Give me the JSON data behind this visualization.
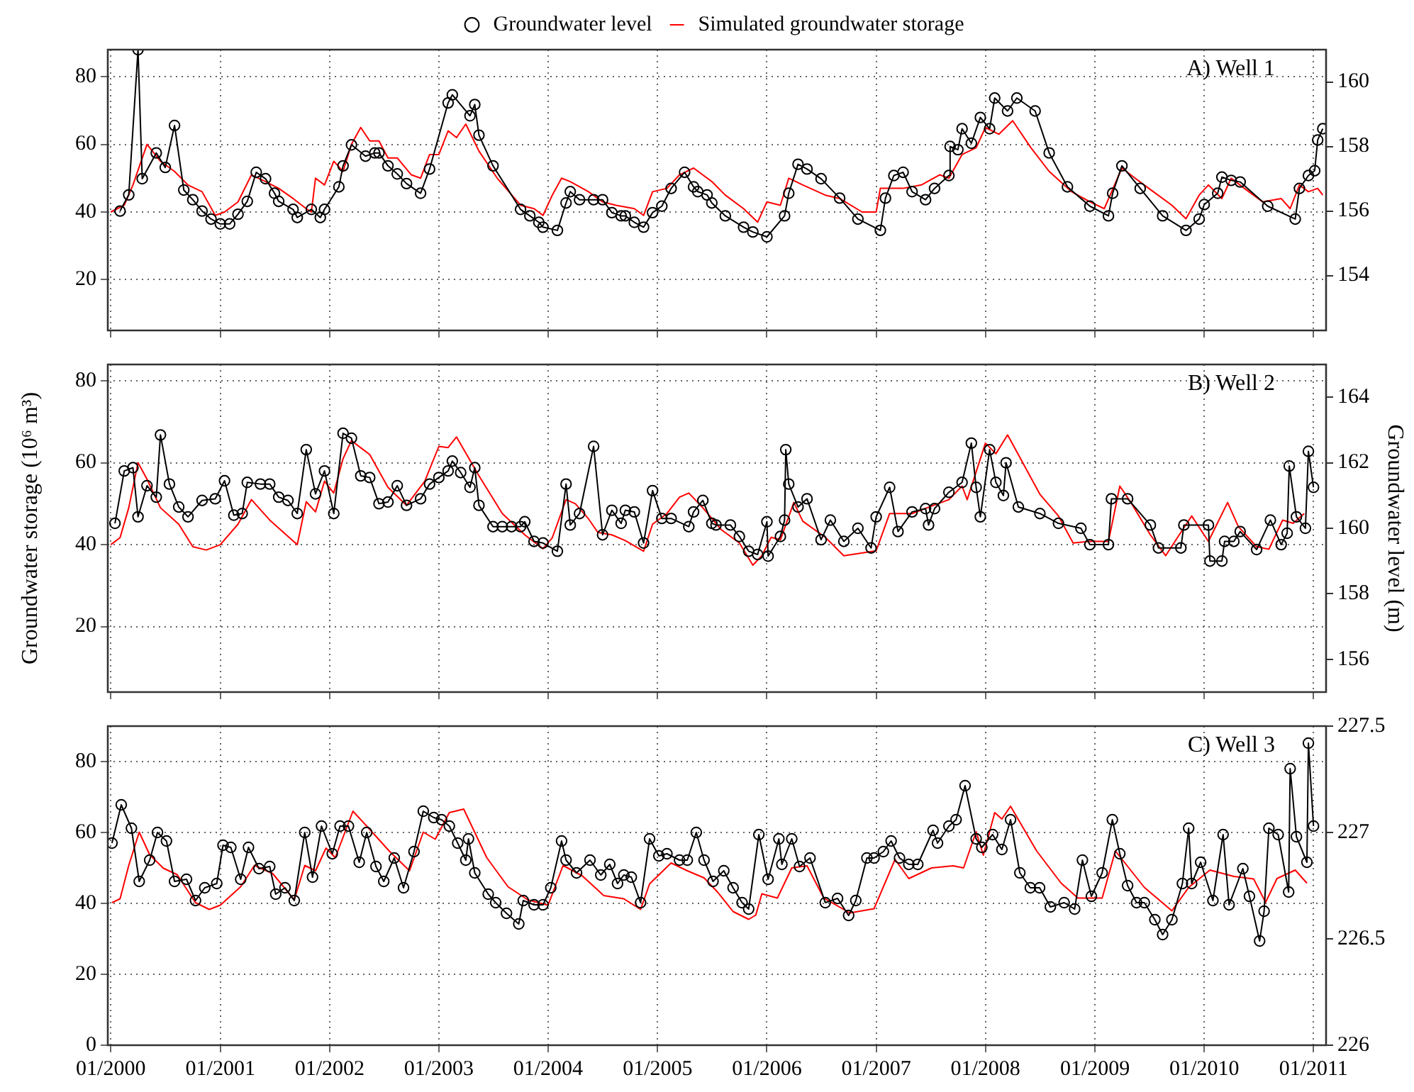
{
  "chart_data": [
    {
      "type": "line",
      "annotations": [
        "A) Well 1"
      ],
      "xlim": [
        "1999-12-22",
        "2011-02-12"
      ],
      "xticks": [
        {
          "value": "2000-01",
          "label": null
        },
        {
          "value": "2001-01",
          "label": null
        },
        {
          "value": "2002-01",
          "label": null
        },
        {
          "value": "2003-01",
          "label": null
        },
        {
          "value": "2004-01",
          "label": null
        },
        {
          "value": "2005-01",
          "label": null
        },
        {
          "value": "2006-01",
          "label": null
        },
        {
          "value": "2007-01",
          "label": null
        },
        {
          "value": "2008-01",
          "label": null
        },
        {
          "value": "2009-01",
          "label": null
        },
        {
          "value": "2010-01",
          "label": null
        },
        {
          "value": "2011-01",
          "label": null
        }
      ],
      "ylim": [
        5,
        88
      ],
      "yticks": [
        20,
        40,
        60,
        80
      ],
      "y2lim": [
        152.3,
        161
      ],
      "y2ticks": [
        154,
        156,
        158,
        160
      ],
      "grid": true,
      "legend": "top",
      "tick_labels": "y",
      "series": [
        {
          "name": "Groundwater level",
          "color": "#000000",
          "axis": "y2",
          "marker": "circle",
          "x": [
            "2000-02-01",
            "2000-03-01",
            "2000-04-01",
            "2000-04-15",
            "2000-06-01",
            "2000-07-01",
            "2000-08-01",
            "2000-09-01",
            "2000-10-01",
            "2000-11-01",
            "2000-12-01",
            "2001-01-01",
            "2001-02-01",
            "2001-03-01",
            "2001-04-01",
            "2001-05-01",
            "2001-06-01",
            "2001-07-01",
            "2001-07-15",
            "2001-09-01",
            "2001-09-15",
            "2001-11-01",
            "2001-12-01",
            "2001-12-15",
            "2002-02-01",
            "2002-02-15",
            "2002-03-15",
            "2002-05-01",
            "2002-06-01",
            "2002-06-15",
            "2002-07-15",
            "2002-08-15",
            "2002-09-15",
            "2002-11-01",
            "2002-12-01",
            "2003-02-01",
            "2003-02-15",
            "2003-04-15",
            "2003-05-01",
            "2003-05-15",
            "2003-07-01",
            "2003-10-01",
            "2003-11-01",
            "2003-12-01",
            "2003-12-15",
            "2004-02-01",
            "2004-03-01",
            "2004-03-15",
            "2004-04-15",
            "2004-06-01",
            "2004-07-01",
            "2004-08-01",
            "2004-09-01",
            "2004-09-15",
            "2004-10-15",
            "2004-11-15",
            "2004-12-15",
            "2005-01-15",
            "2005-02-15",
            "2005-04-01",
            "2005-05-01",
            "2005-05-15",
            "2005-06-15",
            "2005-07-01",
            "2005-08-15",
            "2005-10-15",
            "2005-11-15",
            "2006-01-01",
            "2006-03-01",
            "2006-03-15",
            "2006-04-15",
            "2006-05-15",
            "2006-07-01",
            "2006-09-01",
            "2006-11-01",
            "2007-01-15",
            "2007-02-01",
            "2007-03-01",
            "2007-04-01",
            "2007-05-01",
            "2007-06-15",
            "2007-07-15",
            "2007-09-01",
            "2007-09-05",
            "2007-10-01",
            "2007-10-15",
            "2007-11-15",
            "2007-12-15",
            "2008-01-15",
            "2008-02-01",
            "2008-03-15",
            "2008-04-15",
            "2008-06-15",
            "2008-08-01",
            "2008-10-01",
            "2008-12-15",
            "2009-02-15",
            "2009-03-01",
            "2009-04-01",
            "2009-06-01",
            "2009-08-15",
            "2009-11-01",
            "2009-12-15",
            "2010-01-01",
            "2010-02-15",
            "2010-03-01",
            "2010-04-01",
            "2010-05-01",
            "2010-08-01",
            "2010-11-01",
            "2010-11-15",
            "2010-12-15",
            "2011-01-05",
            "2011-01-15",
            "2011-02-01"
          ],
          "values": [
            156.0,
            156.5,
            161,
            157.0,
            157.8,
            157.35,
            158.65,
            156.65,
            156.35,
            156.0,
            155.75,
            155.6,
            155.6,
            155.9,
            156.3,
            157.2,
            157.0,
            156.55,
            156.3,
            156.05,
            155.8,
            156.05,
            155.8,
            156.05,
            156.75,
            157.4,
            158.05,
            157.7,
            157.8,
            157.8,
            157.4,
            157.15,
            156.85,
            156.55,
            157.3,
            159.35,
            159.6,
            158.95,
            159.3,
            158.35,
            157.4,
            156.05,
            155.85,
            155.65,
            155.5,
            155.4,
            156.25,
            156.6,
            156.35,
            156.35,
            156.35,
            155.95,
            155.85,
            155.85,
            155.65,
            155.5,
            155.95,
            156.15,
            156.7,
            157.2,
            156.75,
            156.6,
            156.5,
            156.25,
            155.85,
            155.5,
            155.35,
            155.2,
            155.85,
            156.55,
            157.45,
            157.3,
            157.0,
            156.4,
            155.75,
            155.4,
            156.4,
            157.1,
            157.2,
            156.6,
            156.35,
            156.7,
            157.1,
            158.0,
            157.9,
            158.55,
            158.1,
            158.9,
            158.55,
            159.5,
            159.1,
            159.5,
            159.1,
            157.8,
            156.75,
            156.15,
            155.85,
            156.55,
            157.4,
            156.7,
            155.85,
            155.4,
            155.75,
            156.2,
            156.55,
            157.05,
            156.95,
            156.9,
            156.15,
            155.75,
            156.7,
            157.1,
            157.25,
            158.2,
            158.55
          ]
        },
        {
          "name": "Simulated groundwater storage",
          "color": "#ff0000",
          "marker": "none",
          "x": [
            "2000-01-01",
            "2000-02-15",
            "2000-03-15",
            "2000-05-01",
            "2000-06-15",
            "2000-08-01",
            "2000-09-15",
            "2000-11-01",
            "2000-12-15",
            "2001-01-15",
            "2001-03-01",
            "2001-04-15",
            "2001-06-01",
            "2001-07-15",
            "2001-09-01",
            "2001-10-15",
            "2001-11-01",
            "2001-11-15",
            "2001-12-15",
            "2002-01-15",
            "2002-02-15",
            "2002-03-15",
            "2002-04-15",
            "2002-05-15",
            "2002-06-15",
            "2002-07-15",
            "2002-08-15",
            "2002-10-01",
            "2002-11-01",
            "2002-12-01",
            "2003-01-01",
            "2003-02-01",
            "2003-03-01",
            "2003-04-01",
            "2003-05-15",
            "2003-07-15",
            "2003-10-01",
            "2003-11-15",
            "2003-12-15",
            "2004-01-15",
            "2004-02-15",
            "2004-03-15",
            "2004-05-15",
            "2004-07-01",
            "2004-08-15",
            "2004-10-15",
            "2004-11-15",
            "2004-12-15",
            "2005-02-01",
            "2005-03-15",
            "2005-05-01",
            "2005-07-01",
            "2005-08-15",
            "2005-10-15",
            "2005-12-01",
            "2006-01-01",
            "2006-02-15",
            "2006-03-15",
            "2006-05-01",
            "2006-07-15",
            "2006-09-01",
            "2006-11-15",
            "2007-01-01",
            "2007-01-15",
            "2007-04-01",
            "2007-06-01",
            "2007-08-01",
            "2007-09-01",
            "2007-10-15",
            "2007-12-01",
            "2008-01-01",
            "2008-02-15",
            "2008-04-01",
            "2008-06-01",
            "2008-08-01",
            "2008-10-15",
            "2008-12-15",
            "2009-02-01",
            "2009-04-01",
            "2009-05-15",
            "2009-07-15",
            "2009-09-15",
            "2009-11-01",
            "2009-12-15",
            "2010-01-15",
            "2010-03-01",
            "2010-04-01",
            "2010-05-15",
            "2010-07-15",
            "2010-09-15",
            "2010-10-15",
            "2010-11-15",
            "2010-12-15",
            "2011-01-15",
            "2011-02-01"
          ],
          "values": [
            40,
            42,
            48,
            60,
            55,
            52,
            48,
            46,
            39,
            40,
            43,
            51,
            49,
            47,
            44,
            41,
            40,
            50,
            48,
            55,
            52,
            60,
            65,
            61,
            61,
            56,
            56,
            51,
            50,
            57,
            57,
            64,
            62,
            66,
            58,
            50,
            42,
            41,
            39,
            45,
            50,
            49,
            46,
            43,
            42,
            41,
            39,
            46,
            47,
            51,
            53,
            49,
            45,
            41,
            37,
            43,
            42,
            50,
            48,
            45,
            44,
            40,
            40,
            47,
            47,
            48,
            51,
            50,
            57,
            59,
            65,
            63,
            67,
            59,
            52,
            46,
            43,
            41,
            53,
            50,
            46,
            42,
            38,
            45,
            48,
            44,
            50,
            47,
            43,
            44,
            41,
            48,
            46,
            47,
            45
          ]
        }
      ]
    },
    {
      "type": "line",
      "annotations": [
        "B) Well 2"
      ],
      "ylabel": "Groundwater storage (10⁶ m³)",
      "y2label": "Groundwater level (m)",
      "xlim": [
        "1999-12-22",
        "2011-02-12"
      ],
      "xticks": [
        {
          "value": "2000-01",
          "label": null
        },
        {
          "value": "2001-01",
          "label": null
        },
        {
          "value": "2002-01",
          "label": null
        },
        {
          "value": "2003-01",
          "label": null
        },
        {
          "value": "2004-01",
          "label": null
        },
        {
          "value": "2005-01",
          "label": null
        },
        {
          "value": "2006-01",
          "label": null
        },
        {
          "value": "2007-01",
          "label": null
        },
        {
          "value": "2008-01",
          "label": null
        },
        {
          "value": "2009-01",
          "label": null
        },
        {
          "value": "2010-01",
          "label": null
        },
        {
          "value": "2011-01",
          "label": null
        }
      ],
      "ylim": [
        4,
        84
      ],
      "yticks": [
        20,
        40,
        60,
        80
      ],
      "y2lim": [
        155,
        165
      ],
      "y2ticks": [
        156,
        158,
        160,
        162,
        164
      ],
      "grid": true,
      "tick_labels": "y",
      "series": [
        {
          "color": "#000000",
          "axis": "y2",
          "marker": "circle",
          "x": [
            "2000-01-15",
            "2000-02-15",
            "2000-03-15",
            "2000-04-01",
            "2000-05-01",
            "2000-06-01",
            "2000-06-15",
            "2000-07-15",
            "2000-08-15",
            "2000-09-15",
            "2000-11-01",
            "2000-12-15",
            "2001-01-15",
            "2001-02-15",
            "2001-03-15",
            "2001-04-01",
            "2001-05-15",
            "2001-06-15",
            "2001-07-15",
            "2001-08-15",
            "2001-09-15",
            "2001-10-15",
            "2001-11-15",
            "2001-12-15",
            "2002-01-15",
            "2002-02-15",
            "2002-03-15",
            "2002-04-15",
            "2002-05-15",
            "2002-06-15",
            "2002-07-15",
            "2002-08-15",
            "2002-09-15",
            "2002-11-01",
            "2002-12-01",
            "2003-01-01",
            "2003-02-01",
            "2003-02-15",
            "2003-03-15",
            "2003-04-15",
            "2003-05-01",
            "2003-05-15",
            "2003-07-01",
            "2003-08-01",
            "2003-09-01",
            "2003-10-01",
            "2003-10-15",
            "2003-11-15",
            "2003-12-15",
            "2004-02-01",
            "2004-03-01",
            "2004-03-15",
            "2004-04-15",
            "2004-06-01",
            "2004-07-01",
            "2004-08-01",
            "2004-09-01",
            "2004-09-15",
            "2004-10-15",
            "2004-11-15",
            "2004-12-15",
            "2005-01-15",
            "2005-02-15",
            "2005-04-15",
            "2005-05-01",
            "2005-06-01",
            "2005-07-01",
            "2005-07-15",
            "2005-09-01",
            "2005-10-01",
            "2005-11-01",
            "2005-12-01",
            "2006-01-01",
            "2006-01-05",
            "2006-02-15",
            "2006-03-01",
            "2006-03-05",
            "2006-03-15",
            "2006-04-15",
            "2006-05-15",
            "2006-07-01",
            "2006-08-01",
            "2006-09-15",
            "2006-11-01",
            "2006-12-15",
            "2007-01-01",
            "2007-02-15",
            "2007-03-15",
            "2007-05-01",
            "2007-06-15",
            "2007-06-25",
            "2007-07-15",
            "2007-09-01",
            "2007-10-15",
            "2007-11-15",
            "2007-12-01",
            "2007-12-15",
            "2008-01-15",
            "2008-02-05",
            "2008-03-01",
            "2008-03-10",
            "2008-04-20",
            "2008-07-01",
            "2008-09-01",
            "2008-11-15",
            "2008-12-15",
            "2009-02-15",
            "2009-02-25",
            "2009-04-20",
            "2009-07-05",
            "2009-08-01",
            "2009-10-15",
            "2009-10-25",
            "2010-01-15",
            "2010-01-20",
            "2010-03-01",
            "2010-03-10",
            "2010-04-10",
            "2010-05-01",
            "2010-06-25",
            "2010-08-10",
            "2010-09-15",
            "2010-10-05",
            "2010-10-12",
            "2010-11-05",
            "2010-12-05",
            "2010-12-15",
            "2011-01-01"
          ],
          "values": [
            160.15,
            161.75,
            161.85,
            160.35,
            161.3,
            160.95,
            162.85,
            161.35,
            160.65,
            160.35,
            160.85,
            160.9,
            161.45,
            160.4,
            160.45,
            161.4,
            161.35,
            161.35,
            160.95,
            160.85,
            160.45,
            162.4,
            161.05,
            161.75,
            160.45,
            162.9,
            162.75,
            161.6,
            161.55,
            160.75,
            160.8,
            161.3,
            160.7,
            160.9,
            161.35,
            161.55,
            161.75,
            162.05,
            161.7,
            161.25,
            161.85,
            160.7,
            160.05,
            160.05,
            160.05,
            160.05,
            160.2,
            159.6,
            159.55,
            159.3,
            161.35,
            160.1,
            160.45,
            162.5,
            159.8,
            160.55,
            160.15,
            160.55,
            160.5,
            159.55,
            161.15,
            160.3,
            160.3,
            160.05,
            160.5,
            160.85,
            160.15,
            160.1,
            160.1,
            159.75,
            159.3,
            159.2,
            160.2,
            159.15,
            159.75,
            160.25,
            162.4,
            161.35,
            160.65,
            160.9,
            159.65,
            160.25,
            159.6,
            160.0,
            159.4,
            160.35,
            161.25,
            159.9,
            160.5,
            160.6,
            160.1,
            160.6,
            161.1,
            161.4,
            162.6,
            161.25,
            160.35,
            162.4,
            161.4,
            161.0,
            162.0,
            160.65,
            160.45,
            160.15,
            160.0,
            159.5,
            159.5,
            160.9,
            160.9,
            160.1,
            159.4,
            159.4,
            160.1,
            160.1,
            159.0,
            159.0,
            159.6,
            159.6,
            159.9,
            159.35,
            160.25,
            159.5,
            159.85,
            161.9,
            160.35,
            160.0,
            162.35,
            161.25
          ]
        },
        {
          "color": "#ff0000",
          "marker": "none",
          "x": [
            "2000-01-01",
            "2000-02-01",
            "2000-03-01",
            "2000-04-01",
            "2000-05-01",
            "2000-06-15",
            "2000-08-15",
            "2000-10-01",
            "2000-11-15",
            "2001-01-01",
            "2001-03-01",
            "2001-04-15",
            "2001-06-15",
            "2001-09-15",
            "2001-10-15",
            "2001-11-15",
            "2001-12-15",
            "2002-01-15",
            "2002-02-15",
            "2002-03-15",
            "2002-05-15",
            "2002-07-15",
            "2002-09-15",
            "2002-11-15",
            "2003-01-01",
            "2003-02-01",
            "2003-03-01",
            "2003-05-15",
            "2003-08-01",
            "2003-10-15",
            "2003-12-15",
            "2004-01-15",
            "2004-03-01",
            "2004-04-01",
            "2004-05-15",
            "2004-06-15",
            "2004-08-01",
            "2004-09-15",
            "2004-11-15",
            "2004-12-15",
            "2005-02-01",
            "2005-03-15",
            "2005-04-15",
            "2005-06-01",
            "2005-08-01",
            "2005-10-01",
            "2005-11-15",
            "2005-12-15",
            "2006-01-15",
            "2006-02-15",
            "2006-04-01",
            "2006-05-01",
            "2006-07-15",
            "2006-09-15",
            "2007-01-01",
            "2007-02-15",
            "2007-05-01",
            "2007-07-15",
            "2007-09-01",
            "2007-10-15",
            "2007-11-01",
            "2008-01-01",
            "2008-02-05",
            "2008-03-15",
            "2008-07-01",
            "2008-09-01",
            "2008-10-20",
            "2008-12-10",
            "2009-02-15",
            "2009-03-25",
            "2009-05-01",
            "2009-07-05",
            "2009-08-25",
            "2009-10-15",
            "2009-11-20",
            "2010-01-15",
            "2010-03-20",
            "2010-04-25",
            "2010-06-25",
            "2010-08-05",
            "2010-09-20",
            "2010-10-25",
            "2010-12-01"
          ],
          "values": [
            40,
            41.7,
            49,
            60,
            56,
            49,
            45,
            39.5,
            38.7,
            40,
            45,
            51,
            46,
            40,
            50.5,
            48,
            55.5,
            52.6,
            61,
            65.4,
            62,
            54,
            49.6,
            55.5,
            64,
            63.7,
            66.3,
            56.8,
            47.6,
            42.4,
            39,
            41.7,
            51,
            50,
            46.3,
            43,
            42.4,
            41,
            38.4,
            45,
            47.6,
            51.6,
            52.6,
            49,
            43.7,
            40.4,
            35,
            37.3,
            41.8,
            41.2,
            50.3,
            45.7,
            41.8,
            37.3,
            38.5,
            47.6,
            47.6,
            49.7,
            51,
            54.3,
            51,
            64.8,
            62.2,
            66.8,
            52.3,
            47,
            40.4,
            40.8,
            40.8,
            54.3,
            50.3,
            42.4,
            37.3,
            43,
            47,
            40.8,
            50.3,
            44.4,
            39.5,
            38.9,
            46,
            45.2,
            47.6
          ]
        }
      ]
    },
    {
      "type": "line",
      "annotations": [
        "C) Well 3"
      ],
      "xlim": [
        "1999-12-22",
        "2011-02-12"
      ],
      "xticks": [
        {
          "value": "2000-01",
          "label": "01/2000"
        },
        {
          "value": "2001-01",
          "label": "01/2001"
        },
        {
          "value": "2002-01",
          "label": "01/2002"
        },
        {
          "value": "2003-01",
          "label": "01/2003"
        },
        {
          "value": "2004-01",
          "label": "01/2004"
        },
        {
          "value": "2005-01",
          "label": "01/2005"
        },
        {
          "value": "2006-01",
          "label": "01/2006"
        },
        {
          "value": "2007-01",
          "label": "01/2007"
        },
        {
          "value": "2008-01",
          "label": "01/2008"
        },
        {
          "value": "2009-01",
          "label": "01/2009"
        },
        {
          "value": "2010-01",
          "label": "01/2010"
        },
        {
          "value": "2011-01",
          "label": "01/2011"
        }
      ],
      "ylim": [
        0,
        90
      ],
      "yticks": [
        0,
        20,
        40,
        60,
        80
      ],
      "y2lim": [
        226,
        227.5
      ],
      "y2ticks": [
        226,
        226.5,
        227,
        227.5
      ],
      "grid": true,
      "series": [
        {
          "color": "#000000",
          "axis": "y2",
          "marker": "circle",
          "x": [
            "2000-01-05",
            "2000-02-05",
            "2000-03-10",
            "2000-04-05",
            "2000-05-10",
            "2000-06-05",
            "2000-07-05",
            "2000-08-01",
            "2000-09-10",
            "2000-10-10",
            "2000-11-10",
            "2000-12-20",
            "2001-01-10",
            "2001-02-05",
            "2001-03-10",
            "2001-04-05",
            "2001-05-10",
            "2001-06-15",
            "2001-07-05",
            "2001-08-05",
            "2001-09-05",
            "2001-10-10",
            "2001-11-05",
            "2001-12-05",
            "2002-01-10",
            "2002-02-05",
            "2002-03-05",
            "2002-04-10",
            "2002-05-05",
            "2002-06-05",
            "2002-07-01",
            "2002-08-05",
            "2002-09-05",
            "2002-10-10",
            "2002-11-10",
            "2002-12-15",
            "2003-01-10",
            "2003-02-05",
            "2003-03-05",
            "2003-04-01",
            "2003-04-10",
            "2003-05-01",
            "2003-06-15",
            "2003-07-10",
            "2003-08-15",
            "2003-09-25",
            "2003-10-10",
            "2003-11-15",
            "2003-12-15",
            "2004-01-10",
            "2004-02-15",
            "2004-03-01",
            "2004-04-05",
            "2004-05-20",
            "2004-06-25",
            "2004-07-25",
            "2004-08-20",
            "2004-09-10",
            "2004-10-05",
            "2004-11-05",
            "2004-12-05",
            "2005-01-05",
            "2005-02-01",
            "2005-03-15",
            "2005-04-10",
            "2005-05-10",
            "2005-06-05",
            "2005-07-05",
            "2005-08-10",
            "2005-09-10",
            "2005-10-10",
            "2005-11-01",
            "2005-12-05",
            "2006-01-05",
            "2006-02-10",
            "2006-02-20",
            "2006-03-25",
            "2006-04-20",
            "2006-05-25",
            "2006-07-15",
            "2006-08-25",
            "2006-10-01",
            "2006-10-25",
            "2006-12-01",
            "2006-12-25",
            "2007-01-25",
            "2007-02-20",
            "2007-03-20",
            "2007-04-20",
            "2007-05-20",
            "2007-07-10",
            "2007-07-25",
            "2007-09-01",
            "2007-09-25",
            "2007-10-25",
            "2007-12-01",
            "2007-12-20",
            "2008-01-25",
            "2008-02-25",
            "2008-03-25",
            "2008-04-25",
            "2008-05-30",
            "2008-06-30",
            "2008-08-05",
            "2008-09-20",
            "2008-10-25",
            "2008-11-20",
            "2008-12-20",
            "2009-01-25",
            "2009-02-28",
            "2009-03-25",
            "2009-04-20",
            "2009-05-20",
            "2009-06-15",
            "2009-07-20",
            "2009-08-15",
            "2009-09-15",
            "2009-10-20",
            "2009-11-10",
            "2009-11-20",
            "2009-12-20",
            "2010-01-30",
            "2010-03-05",
            "2010-03-25",
            "2010-05-10",
            "2010-06-01",
            "2010-07-05",
            "2010-07-20",
            "2010-08-05",
            "2010-09-05",
            "2010-10-10",
            "2010-10-15",
            "2010-11-05",
            "2010-12-10",
            "2010-12-15",
            "2011-01-01"
          ],
          "values": [
            226.95,
            227.13,
            227.02,
            226.77,
            226.87,
            227.0,
            226.96,
            226.77,
            226.78,
            226.68,
            226.74,
            226.76,
            226.94,
            226.93,
            226.78,
            226.93,
            226.83,
            226.84,
            226.71,
            226.74,
            226.68,
            227.0,
            226.79,
            227.03,
            226.9,
            227.03,
            227.03,
            226.86,
            227.0,
            226.84,
            226.77,
            226.88,
            226.74,
            226.91,
            227.1,
            227.07,
            227.06,
            227.03,
            226.95,
            226.87,
            226.97,
            226.81,
            226.71,
            226.67,
            226.62,
            226.57,
            226.68,
            226.66,
            226.66,
            226.74,
            226.96,
            226.87,
            226.81,
            226.87,
            226.8,
            226.85,
            226.76,
            226.8,
            226.79,
            226.67,
            226.97,
            226.89,
            226.9,
            226.87,
            226.87,
            227.0,
            226.87,
            226.77,
            226.82,
            226.74,
            226.67,
            226.64,
            226.99,
            226.78,
            226.97,
            226.85,
            226.97,
            226.84,
            226.88,
            226.67,
            226.69,
            226.61,
            226.68,
            226.88,
            226.88,
            226.91,
            226.96,
            226.88,
            226.85,
            226.85,
            227.01,
            226.95,
            227.03,
            227.06,
            227.22,
            226.97,
            226.93,
            226.99,
            226.92,
            227.06,
            226.81,
            226.74,
            226.74,
            226.65,
            226.67,
            226.64,
            226.87,
            226.7,
            226.81,
            227.06,
            226.9,
            226.75,
            226.67,
            226.67,
            226.59,
            226.52,
            226.59,
            226.76,
            227.02,
            226.76,
            226.86,
            226.68,
            226.99,
            226.66,
            226.83,
            226.7,
            226.49,
            226.63,
            227.02,
            226.99,
            226.72,
            227.3,
            226.98,
            226.86,
            227.42,
            227.03
          ]
        },
        {
          "color": "#ff0000",
          "marker": "none",
          "x": [
            "2000-01-05",
            "2000-02-01",
            "2000-03-01",
            "2000-04-05",
            "2000-05-10",
            "2000-06-25",
            "2000-08-10",
            "2000-10-10",
            "2000-11-25",
            "2001-01-01",
            "2001-03-10",
            "2001-04-25",
            "2001-06-25",
            "2001-09-05",
            "2001-10-10",
            "2001-11-15",
            "2001-12-20",
            "2002-01-20",
            "2002-03-20",
            "2002-05-05",
            "2002-07-20",
            "2002-09-25",
            "2002-11-10",
            "2002-12-20",
            "2003-02-05",
            "2003-03-25",
            "2003-06-10",
            "2003-08-20",
            "2003-10-25",
            "2004-01-01",
            "2004-02-20",
            "2004-04-25",
            "2004-07-05",
            "2004-09-10",
            "2004-11-05",
            "2004-12-05",
            "2005-02-15",
            "2005-04-10",
            "2005-06-05",
            "2005-07-20",
            "2005-09-10",
            "2005-11-01",
            "2005-11-25",
            "2005-12-15",
            "2006-02-05",
            "2006-03-25",
            "2006-05-15",
            "2006-07-10",
            "2006-10-05",
            "2006-12-25",
            "2007-03-05",
            "2007-04-20",
            "2007-07-05",
            "2007-09-15",
            "2007-10-20",
            "2007-12-01",
            "2007-12-25",
            "2008-02-01",
            "2008-02-25",
            "2008-03-25",
            "2008-06-20",
            "2008-09-10",
            "2008-11-05",
            "2009-01-25",
            "2009-03-10",
            "2009-06-15",
            "2009-09-15",
            "2009-11-10",
            "2010-01-20",
            "2010-04-10",
            "2010-06-15",
            "2010-07-25",
            "2010-09-01",
            "2010-11-01",
            "2010-12-10"
          ],
          "values": [
            40.2,
            41.3,
            50.7,
            60.1,
            53.7,
            49.9,
            48.1,
            40.2,
            38.3,
            39.5,
            44.7,
            50.7,
            48.4,
            41,
            50.7,
            49.2,
            55.6,
            52.9,
            66,
            61.8,
            54.7,
            49.2,
            60.1,
            58.1,
            65.6,
            66.6,
            52.9,
            44.7,
            41,
            39.5,
            50.7,
            47.7,
            42.2,
            41.3,
            38.3,
            45.5,
            51.4,
            49.2,
            47.2,
            43.2,
            37.7,
            35.5,
            36.7,
            42.7,
            41.5,
            50,
            50.6,
            41.5,
            37.3,
            38.5,
            52.4,
            47,
            50,
            50.6,
            50,
            60.2,
            53.6,
            65.6,
            63.8,
            67.4,
            54.8,
            45.7,
            41.5,
            41.5,
            54.8,
            44.5,
            37.9,
            44.5,
            49.4,
            47.6,
            46.9,
            40.3,
            47,
            49.4,
            45.7
          ]
        }
      ]
    }
  ]
}
